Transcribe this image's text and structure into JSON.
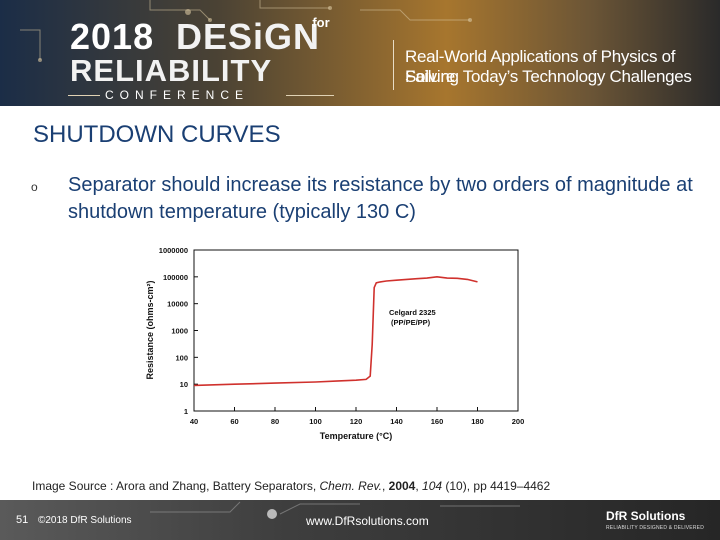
{
  "banner": {
    "year": "2018",
    "design": "DESiGN",
    "for_label": "for",
    "reliability": "RELIABILITY",
    "conference": "CONFERENCE",
    "tagline_1": "Real-World Applications of Physics of Failure",
    "tagline_2": "Solving Today’s Technology Challenges"
  },
  "slide": {
    "title": "SHUTDOWN CURVES",
    "bullet_marker": "o",
    "bullet_text": "Separator should increase its resistance by two orders of magnitude at shutdown temperature (typically 130 C)"
  },
  "chart_data": {
    "type": "line",
    "title": "",
    "xlabel": "Temperature (°C)",
    "ylabel": "Resistance (ohms-cm²)",
    "xlim": [
      40,
      200
    ],
    "ylim": [
      1,
      1000000
    ],
    "y_scale": "log",
    "x_ticks": [
      "40",
      "60",
      "80",
      "100",
      "120",
      "140",
      "160",
      "180",
      "200"
    ],
    "y_ticks": [
      "1",
      "10",
      "100",
      "1000",
      "10000",
      "100000",
      "1000000"
    ],
    "annotation": [
      "Celgard 2325",
      "(PP/PE/PP)"
    ],
    "color": "#d0312d",
    "series": [
      {
        "x": [
          40,
          60,
          80,
          100,
          110,
          120,
          125,
          127,
          128,
          129,
          130,
          132,
          135,
          140,
          145,
          150,
          155,
          160,
          165,
          170,
          175,
          180
        ],
        "y": [
          9,
          10,
          11,
          12,
          13,
          14,
          15,
          20,
          300,
          40000,
          60000,
          65000,
          70000,
          75000,
          80000,
          85000,
          90000,
          100000,
          90000,
          88000,
          80000,
          65000
        ]
      }
    ]
  },
  "source": {
    "prefix": "Image Source : Arora and Zhang, Battery Separators, ",
    "journal": "Chem. Rev.",
    "sep": ", ",
    "year": "2004",
    "sep2": ", ",
    "volume": "104",
    "rest": " (10), pp 4419–4462"
  },
  "footer": {
    "slide_number": "51",
    "copyright": "©2018 DfR Solutions",
    "url": "www.DfRsolutions.com",
    "brand": "DfR Solutions",
    "brand_sub": "RELIABILITY DESIGNED & DELIVERED"
  },
  "colors": {
    "title": "#1a3f73",
    "banner_gold": "#a7762e",
    "banner_navy": "#1b2d47",
    "footer": "#3e3e3e"
  }
}
